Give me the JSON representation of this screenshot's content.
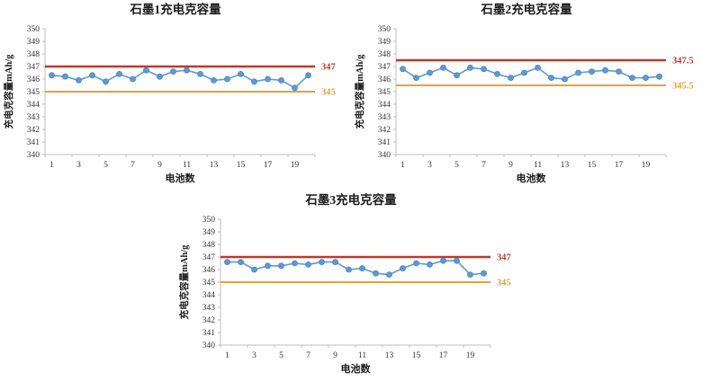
{
  "page": {
    "background": "#ffffff"
  },
  "colors": {
    "series": "#5b9bd5",
    "marker_stroke": "#4f81bd",
    "upper": "#c0392b",
    "lower": "#e8a13c",
    "axis": "#bfbfbf",
    "tick_text": "#333333",
    "title_text": "#1a1a1a"
  },
  "chart_data": [
    {
      "type": "line",
      "title": "石墨1充电克容量",
      "xlabel": "电池数",
      "ylabel": "充电克容量mAh/g",
      "ylim": [
        340,
        350
      ],
      "ytick_step": 1,
      "grid": false,
      "legend": "none",
      "x": [
        1,
        2,
        3,
        4,
        5,
        6,
        7,
        8,
        9,
        10,
        11,
        12,
        13,
        14,
        15,
        16,
        17,
        18,
        19,
        20
      ],
      "xtick_labels": [
        "1",
        "3",
        "5",
        "7",
        "9",
        "11",
        "13",
        "15",
        "17",
        "19"
      ],
      "series": [
        {
          "name": "充电克容量",
          "values": [
            346.3,
            346.2,
            345.9,
            346.3,
            345.8,
            346.4,
            346.0,
            346.7,
            346.2,
            346.6,
            346.7,
            346.4,
            345.9,
            346.0,
            346.4,
            345.8,
            346.0,
            345.9,
            345.3,
            346.3
          ]
        }
      ],
      "reference_lines": [
        {
          "value": 347,
          "label": "347",
          "role": "upper"
        },
        {
          "value": 345,
          "label": "345",
          "role": "lower"
        }
      ]
    },
    {
      "type": "line",
      "title": "石墨2充电克容量",
      "xlabel": "电池数",
      "ylabel": "充电克容量mAh/g",
      "ylim": [
        340,
        350
      ],
      "ytick_step": 1,
      "grid": false,
      "legend": "none",
      "x": [
        1,
        2,
        3,
        4,
        5,
        6,
        7,
        8,
        9,
        10,
        11,
        12,
        13,
        14,
        15,
        16,
        17,
        18,
        19,
        20
      ],
      "xtick_labels": [
        "1",
        "3",
        "5",
        "7",
        "9",
        "11",
        "13",
        "15",
        "17",
        "19"
      ],
      "series": [
        {
          "name": "充电克容量",
          "values": [
            346.8,
            346.1,
            346.5,
            346.9,
            346.3,
            346.9,
            346.8,
            346.4,
            346.1,
            346.5,
            346.9,
            346.1,
            346.0,
            346.5,
            346.6,
            346.7,
            346.6,
            346.1,
            346.1,
            346.2
          ]
        }
      ],
      "reference_lines": [
        {
          "value": 347.5,
          "label": "347.5",
          "role": "upper"
        },
        {
          "value": 345.5,
          "label": "345.5",
          "role": "lower"
        }
      ]
    },
    {
      "type": "line",
      "title": "石墨3充电克容量",
      "xlabel": "电池数",
      "ylabel": "充电克容量mAh/g",
      "ylim": [
        340,
        350
      ],
      "ytick_step": 1,
      "grid": false,
      "legend": "none",
      "x": [
        1,
        2,
        3,
        4,
        5,
        6,
        7,
        8,
        9,
        10,
        11,
        12,
        13,
        14,
        15,
        16,
        17,
        18,
        19,
        20
      ],
      "xtick_labels": [
        "1",
        "3",
        "5",
        "7",
        "9",
        "11",
        "13",
        "15",
        "17",
        "19"
      ],
      "series": [
        {
          "name": "充电克容量",
          "values": [
            346.6,
            346.6,
            346.0,
            346.3,
            346.3,
            346.5,
            346.4,
            346.6,
            346.6,
            346.0,
            346.1,
            345.7,
            345.6,
            346.1,
            346.5,
            346.4,
            346.7,
            346.7,
            345.6,
            345.7
          ]
        }
      ],
      "reference_lines": [
        {
          "value": 347,
          "label": "347",
          "role": "upper"
        },
        {
          "value": 345,
          "label": "345",
          "role": "lower"
        }
      ]
    }
  ]
}
